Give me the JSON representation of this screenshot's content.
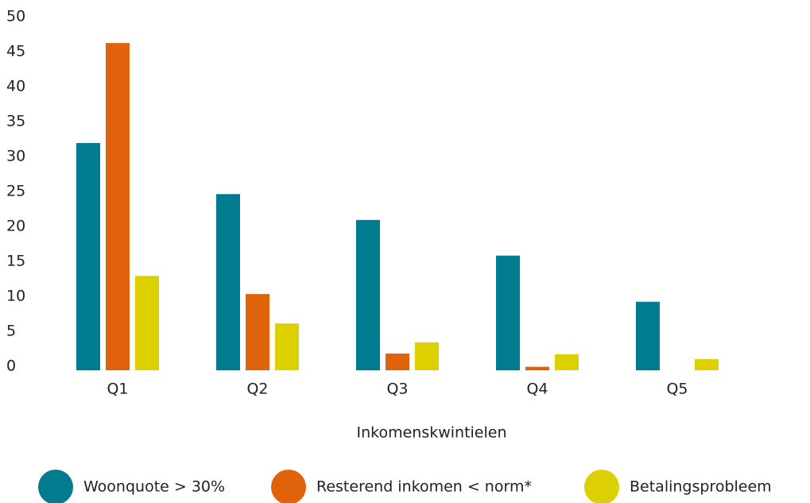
{
  "chart_data": {
    "type": "bar",
    "x_label": "Inkomenskwintielen",
    "categories": [
      "Q1",
      "Q2",
      "Q3",
      "Q4",
      "Q5"
    ],
    "series": [
      {
        "name": "Woonquote > 30%",
        "color": "#007b8f",
        "values": [
          32.5,
          25.2,
          21.5,
          16.4,
          9.8
        ]
      },
      {
        "name": "Resterend inkomen < norm*",
        "color": "#e0620b",
        "values": [
          46.8,
          10.9,
          2.4,
          0.5,
          0
        ]
      },
      {
        "name": "Betalingsprobleem",
        "color": "#ddd000",
        "values": [
          13.5,
          6.7,
          4.0,
          2.3,
          1.6
        ]
      }
    ],
    "ylim": [
      0,
      50
    ],
    "yticks": [
      0,
      5,
      10,
      15,
      20,
      25,
      30,
      35,
      40,
      45,
      50
    ],
    "grid": false,
    "legend": "bottom"
  }
}
